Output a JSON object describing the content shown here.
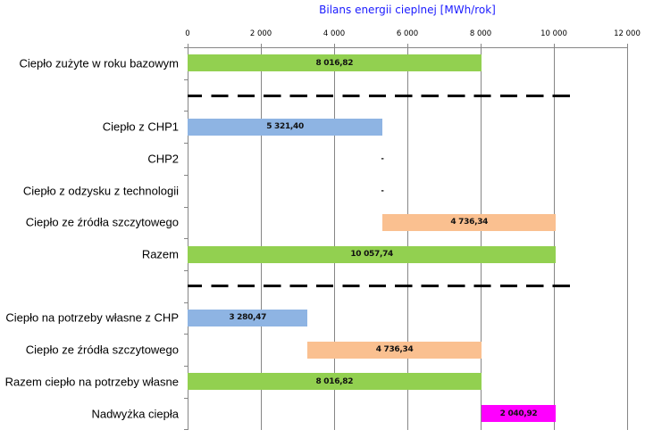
{
  "chart_data": {
    "type": "bar",
    "orientation": "horizontal",
    "stacked_waterfall": true,
    "title": "Bilans energii cieplnej [MWh/rok]",
    "xlabel": "",
    "ylabel": "",
    "xlim": [
      0,
      12000
    ],
    "x_ticks": [
      "0",
      "2 000",
      "4 000",
      "6 000",
      "8 000",
      "10 000",
      "12 000"
    ],
    "x_tick_values": [
      0,
      2000,
      4000,
      6000,
      8000,
      10000,
      12000
    ],
    "grid": true,
    "legend": null,
    "categories": [
      "Ciepło zużyte w roku bazowym",
      "",
      "Ciepło z CHP1",
      "CHP2",
      "Ciepło z odzysku z technologii",
      "Ciepło ze źródła szczytowego",
      "Razem",
      "",
      "Ciepło na potrzeby własne z CHP",
      "Ciepło ze źródła szczytowego",
      "Razem ciepło na potrzeby własne",
      "Nadwyżka ciepła"
    ],
    "bars": [
      {
        "category": "Ciepło zużyte w roku bazowym",
        "start": 0,
        "value": 8016.82,
        "label": "8 016,82",
        "color": "#92D050"
      },
      {
        "category": "Ciepło z CHP1",
        "start": 0,
        "value": 5321.4,
        "label": "5 321,40",
        "color": "#8EB4E3"
      },
      {
        "category": "CHP2",
        "start": 5321.4,
        "value": 0,
        "label": "-",
        "color": null
      },
      {
        "category": "Ciepło z odzysku z technologii",
        "start": 5321.4,
        "value": 0,
        "label": "-",
        "color": null
      },
      {
        "category": "Ciepło ze źródła szczytowego",
        "start": 5321.4,
        "value": 4736.34,
        "label": "4 736,34",
        "color": "#FAC090"
      },
      {
        "category": "Razem",
        "start": 0,
        "value": 10057.74,
        "label": "10 057,74",
        "color": "#92D050"
      },
      {
        "category": "Ciepło na potrzeby własne z CHP",
        "start": 0,
        "value": 3280.47,
        "label": "3 280,47",
        "color": "#8EB4E3"
      },
      {
        "category": "Ciepło ze źródła szczytowego",
        "start": 3280.47,
        "value": 4736.34,
        "label": "4 736,34",
        "color": "#FAC090"
      },
      {
        "category": "Razem ciepło na potrzeby własne",
        "start": 0,
        "value": 8016.82,
        "label": "8 016,82",
        "color": "#92D050"
      },
      {
        "category": "Nadwyżka ciepła",
        "start": 8016.82,
        "value": 2040.92,
        "label": "2 040,92",
        "color": "#FF00FF"
      }
    ],
    "annotations": [
      "dashed separator after 'Ciepło zużyte w roku bazowym'",
      "dashed separator after 'Razem'"
    ]
  },
  "colors": {
    "green": "#92D050",
    "blue": "#8EB4E3",
    "orange": "#FAC090",
    "magenta": "#FF00FF",
    "title": "#1A1AFF",
    "grid": "#868686"
  }
}
